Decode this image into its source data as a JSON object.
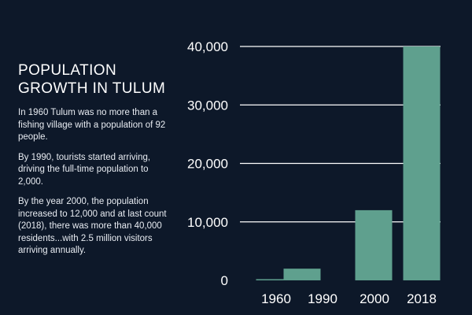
{
  "heading": {
    "title": "POPULATION GROWTH IN TULUM"
  },
  "paragraphs": [
    "In 1960 Tulum was no more than a fishing village with a population of 92 people.",
    "By 1990, tourists started arriving, driving the full-time population to 2,000.",
    "By the year 2000, the population increased to 12,000 and at last count (2018), there was more than 40,000 residents...with 2.5 million visitors arriving annually."
  ],
  "colors": {
    "background": "#0d1829",
    "bar": "#5fa08e",
    "gridline": "#ffffff",
    "text": "#ffffff"
  },
  "chart_data": {
    "type": "bar",
    "categories": [
      "1960",
      "1990",
      "2000",
      "2018"
    ],
    "values": [
      92,
      2000,
      12000,
      40000
    ],
    "yticks": [
      0,
      10000,
      20000,
      30000,
      40000
    ],
    "ytick_labels": [
      "0",
      "10,000",
      "20,000",
      "30,000",
      "40,000"
    ],
    "ylim": [
      0,
      40000
    ],
    "grid": true
  }
}
